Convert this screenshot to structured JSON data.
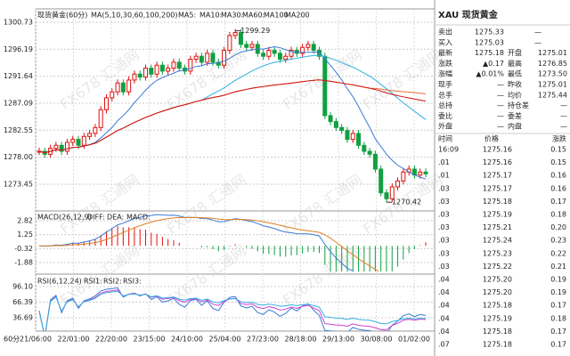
{
  "header": {
    "title": "现货黄金(60分)",
    "ma_label": "MA(5,10,30,60,100,200)",
    "ma_names": [
      "MA5:",
      "MA10:",
      "MA30:",
      "MA60:",
      "MA100",
      "MA200"
    ],
    "ma_colors": [
      "#999999",
      "#3a7bd5",
      "#d040d0",
      "#30b0e0",
      "#e07030",
      "#d01010"
    ]
  },
  "chart_data": {
    "type": "candlestick",
    "closes": [
      1279,
      1278.5,
      1279.5,
      1280,
      1279,
      1280.5,
      1281,
      1280,
      1281.5,
      1282,
      1283,
      1286,
      1288,
      1289,
      1290.5,
      1289,
      1291,
      1292,
      1291.5,
      1293,
      1292,
      1293.5,
      1292.5,
      1293,
      1294,
      1293,
      1292.5,
      1294.5,
      1295,
      1294,
      1295.5,
      1294,
      1293.5,
      1296,
      1298.5,
      1299,
      1297,
      1296.5,
      1297,
      1295.5,
      1295,
      1296,
      1295.5,
      1294.5,
      1295,
      1296,
      1295.5,
      1296.5,
      1297,
      1296,
      1295,
      1285,
      1284,
      1283,
      1282.5,
      1281,
      1282,
      1280,
      1279,
      1278.5,
      1276,
      1272,
      1271,
      1273,
      1274,
      1275.5,
      1276,
      1275,
      1275.5,
      1275.2
    ],
    "up_color": "#e01010",
    "down_color": "#10a040",
    "ylim": [
      1269.25,
      1302.98
    ],
    "yticks": [
      1300.73,
      1296.19,
      1291.64,
      1287.09,
      1282.55,
      {
        "value": 1278,
        "label": "1278.00"
      },
      1273.45
    ],
    "high_mark": 1299.29,
    "low_mark": 1270.42,
    "xlabels": [
      "21/06:00",
      "22/01:00",
      "22/20:00",
      "23/15:00",
      "24/10:00",
      "25/04:00",
      "27/23:00",
      "28/18:00",
      "29/13:00",
      "30/08:00",
      "01/02:00"
    ],
    "period": "60分"
  },
  "macd": {
    "label": "MACD(26,12,9)",
    "names": [
      "DIFF:",
      "DEA:",
      "MACD:"
    ],
    "colors": [
      "#3a7bd5",
      "#e08020",
      "#d040d0"
    ],
    "ylim": [
      -2.88,
      3.62
    ],
    "yticks": [
      2.82,
      1.25,
      -0.32,
      -1.88
    ]
  },
  "rsi": {
    "label": "RSI(6,12,24)",
    "names": [
      "RSI1:",
      "RSI2:",
      "RSI3:"
    ],
    "colors": [
      "#3a7bd5",
      "#d040d0",
      "#30b0e0"
    ],
    "ylim": [
      11.23,
      113.07
    ],
    "yticks": [
      {
        "value": 96.1,
        "label": "96.10"
      },
      66.39,
      36.69
    ]
  },
  "quote": {
    "title": "XAU 现货黄金",
    "rows": [
      [
        "卖出",
        "1275.33",
        "—"
      ],
      [
        "买入",
        "1275.03",
        "—"
      ],
      [
        "最新",
        "1275.18",
        "开盘",
        "1275.01"
      ],
      [
        "涨跌",
        "▲0.17",
        "最高",
        "1276.85"
      ],
      [
        "涨幅",
        "▲0.01%",
        "最低",
        "1273.50"
      ],
      [
        "现手",
        "—",
        "昨收",
        "1275.01"
      ],
      [
        "总手",
        "—",
        "均价",
        "1275.44"
      ],
      [
        "总持",
        "—",
        "持仓差",
        "—"
      ],
      [
        "委比",
        "—",
        "委差",
        "—"
      ],
      [
        "外盘",
        "—",
        "内盘",
        "—"
      ]
    ],
    "trade_header": [
      "时间",
      "价格",
      "涨跌"
    ],
    "trades": [
      [
        "16:09",
        "1275.16",
        "0.15"
      ],
      [
        ".01",
        "1275.16",
        "0.15"
      ],
      [
        ".01",
        "1275.17",
        "0.16"
      ],
      [
        ".03",
        "1275.17",
        "0.16"
      ],
      [
        ".03",
        "1275.18",
        "0.17"
      ],
      [
        ".03",
        "1275.19",
        "0.18"
      ],
      [
        ".03",
        "1275.21",
        "0.20"
      ],
      [
        ".03",
        "1275.24",
        "0.23"
      ],
      [
        ".03",
        "1275.23",
        "0.22"
      ],
      [
        ".03",
        "1275.22",
        "0.21"
      ],
      [
        ".04",
        "1275.20",
        "0.19"
      ],
      [
        ".04",
        "1275.20",
        "0.19"
      ],
      [
        ".04",
        "1275.18",
        "0.17"
      ],
      [
        ".04",
        "1275.19",
        "0.18"
      ],
      [
        ".04",
        "1275.18",
        "0.17"
      ],
      [
        ".07",
        "1275.18",
        "0.17"
      ]
    ]
  },
  "watermark": "FX678 汇通网"
}
